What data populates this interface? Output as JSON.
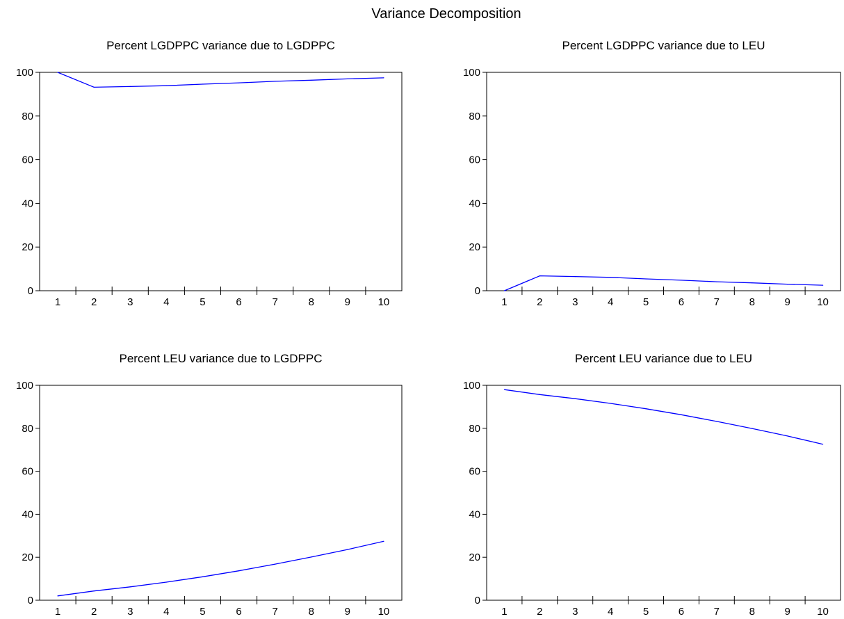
{
  "title": "Variance Decomposition",
  "chart_data": [
    {
      "type": "line",
      "title": "Percent LGDPPC variance due to LGDPPC",
      "categories": [
        "1",
        "2",
        "3",
        "4",
        "5",
        "6",
        "7",
        "8",
        "9",
        "10"
      ],
      "series": [
        {
          "values": [
            100,
            93.2,
            93.5,
            93.9,
            94.6,
            95.2,
            95.9,
            96.4,
            97.0,
            97.5
          ]
        }
      ],
      "ylim": [
        0,
        100
      ],
      "yticks": [
        0,
        20,
        40,
        60,
        80,
        100
      ],
      "color": "#0000ff",
      "grid": false
    },
    {
      "type": "line",
      "title": "Percent LGDPPC variance due to LEU",
      "categories": [
        "1",
        "2",
        "3",
        "4",
        "5",
        "6",
        "7",
        "8",
        "9",
        "10"
      ],
      "series": [
        {
          "values": [
            0,
            6.8,
            6.5,
            6.1,
            5.4,
            4.8,
            4.1,
            3.6,
            3.0,
            2.5
          ]
        }
      ],
      "ylim": [
        0,
        100
      ],
      "yticks": [
        0,
        20,
        40,
        60,
        80,
        100
      ],
      "color": "#0000ff",
      "grid": false
    },
    {
      "type": "line",
      "title": "Percent LEU variance due to LGDPPC",
      "categories": [
        "1",
        "2",
        "3",
        "4",
        "5",
        "6",
        "7",
        "8",
        "9",
        "10"
      ],
      "series": [
        {
          "values": [
            2.0,
            4.3,
            6.2,
            8.4,
            10.9,
            13.7,
            16.8,
            20.1,
            23.6,
            27.4
          ]
        }
      ],
      "ylim": [
        0,
        100
      ],
      "yticks": [
        0,
        20,
        40,
        60,
        80,
        100
      ],
      "color": "#0000ff",
      "grid": false
    },
    {
      "type": "line",
      "title": "Percent LEU variance due to LEU",
      "categories": [
        "1",
        "2",
        "3",
        "4",
        "5",
        "6",
        "7",
        "8",
        "9",
        "10"
      ],
      "series": [
        {
          "values": [
            98.0,
            95.7,
            93.8,
            91.6,
            89.1,
            86.3,
            83.2,
            79.9,
            76.4,
            72.6
          ]
        }
      ],
      "ylim": [
        0,
        100
      ],
      "yticks": [
        0,
        20,
        40,
        60,
        80,
        100
      ],
      "color": "#0000ff",
      "grid": false
    }
  ]
}
